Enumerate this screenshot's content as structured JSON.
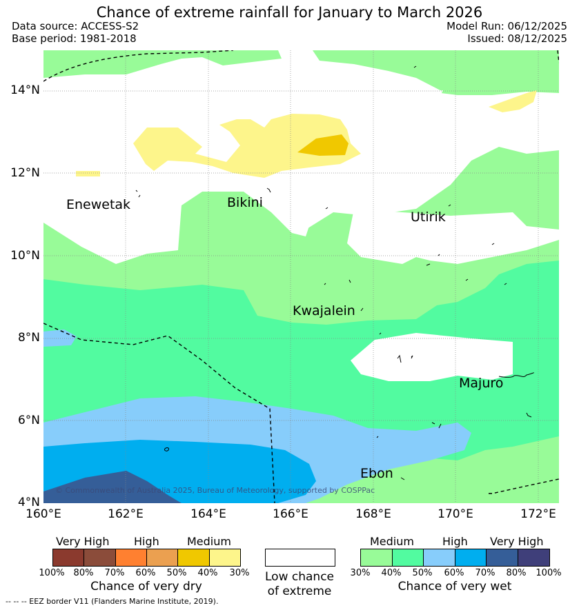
{
  "title": "Chance of extreme rainfall for January to March 2026",
  "data_source": "Data source: ACCESS-S2",
  "base_period": "Base period: 1981-2018",
  "model_run": "Model Run: 06/12/2025",
  "issued": "Issued: 08/12/2025",
  "y_ticks": [
    "14°N",
    "12°N",
    "10°N",
    "8°N",
    "6°N",
    "4°N"
  ],
  "x_ticks": [
    "160°E",
    "162°E",
    "164°E",
    "166°E",
    "168°E",
    "170°E",
    "172°E"
  ],
  "places": [
    "Enewetak",
    "Bikini",
    "Utirik",
    "Kwajalein",
    "Majuro",
    "Ebon"
  ],
  "copyright": "© Commonwealth of Australia 2025, Bureau of Meteorology, supported by COSPPac",
  "dry_legend": {
    "headers": [
      "Very High",
      "High",
      "Medium"
    ],
    "ticks": [
      "100%",
      "80%",
      "70%",
      "60%",
      "50%",
      "40%",
      "30%"
    ],
    "colors": [
      "#8b3a2e",
      "#8b4c3a",
      "#ff8030",
      "#eba050",
      "#f0c800",
      "#fdf58b"
    ],
    "label": "Chance of very dry"
  },
  "low_legend": {
    "label_line1": "Low chance",
    "label_line2": "of extreme",
    "color": "#ffffff"
  },
  "wet_legend": {
    "headers": [
      "Medium",
      "High",
      "Very High"
    ],
    "ticks": [
      "30%",
      "40%",
      "50%",
      "60%",
      "70%",
      "80%",
      "100%"
    ],
    "colors": [
      "#98fb98",
      "#52fba0",
      "#87cdfb",
      "#00aeef",
      "#355e98",
      "#3f3f7a"
    ],
    "label": "Chance of very wet"
  },
  "eez_note": "-- -- -- EEZ border V11 (Flanders Marine Institute, 2019)."
}
